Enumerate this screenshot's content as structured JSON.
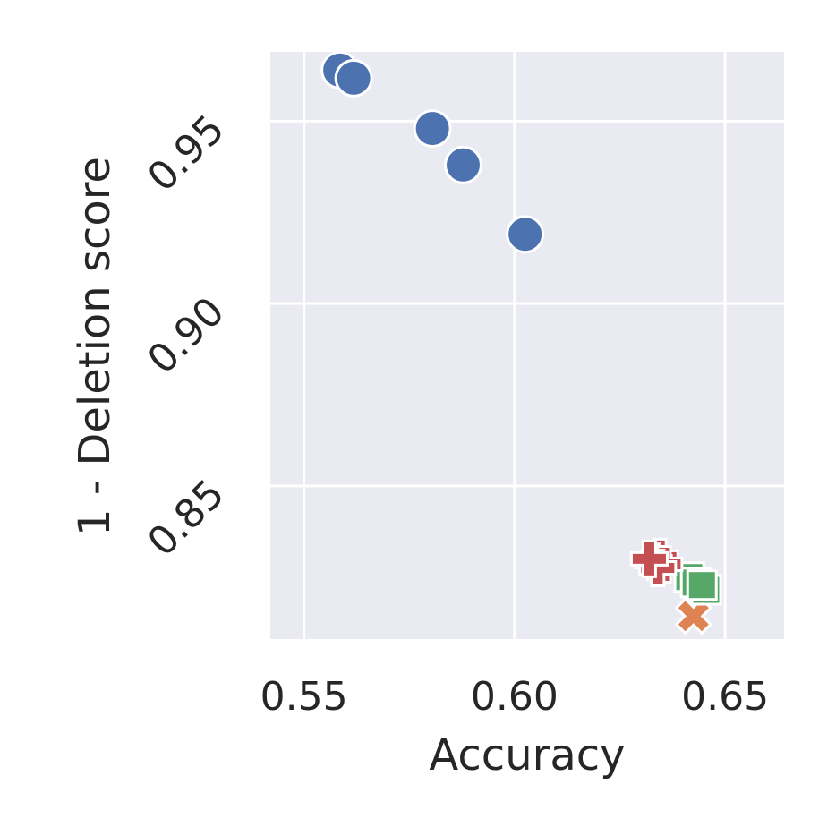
{
  "chart_data": {
    "type": "scatter",
    "title": "",
    "xlabel": "Accuracy",
    "ylabel": "1 - Deletion score",
    "xlim": [
      0.542,
      0.664
    ],
    "ylim": [
      0.808,
      0.969
    ],
    "xticks": [
      0.55,
      0.6,
      0.65
    ],
    "xtick_labels": [
      "0.55",
      "0.60",
      "0.65"
    ],
    "yticks": [
      0.85,
      0.9,
      0.95
    ],
    "ytick_labels": [
      "0.85",
      "0.90",
      "0.95"
    ],
    "grid": true,
    "background": "#EAEAF2",
    "series": [
      {
        "marker": "circle",
        "color": "#4C72B0",
        "x": [
          0.5585,
          0.5618,
          0.5805,
          0.5878,
          0.6025
        ],
        "y": [
          0.964,
          0.9618,
          0.948,
          0.938,
          0.919
        ]
      },
      {
        "marker": "x",
        "color": "#DD8452",
        "x": [
          0.6425
        ],
        "y": [
          0.8143
        ]
      },
      {
        "marker": "square",
        "color": "#55A868",
        "x": [
          0.6415,
          0.6455,
          0.643,
          0.6445
        ],
        "y": [
          0.825,
          0.8215,
          0.8235,
          0.8228
        ]
      },
      {
        "marker": "plus",
        "color": "#C44E52",
        "x": [
          0.6345,
          0.633,
          0.6355,
          0.634,
          0.632
        ],
        "y": [
          0.8305,
          0.8292,
          0.8285,
          0.8275,
          0.83
        ]
      }
    ]
  }
}
